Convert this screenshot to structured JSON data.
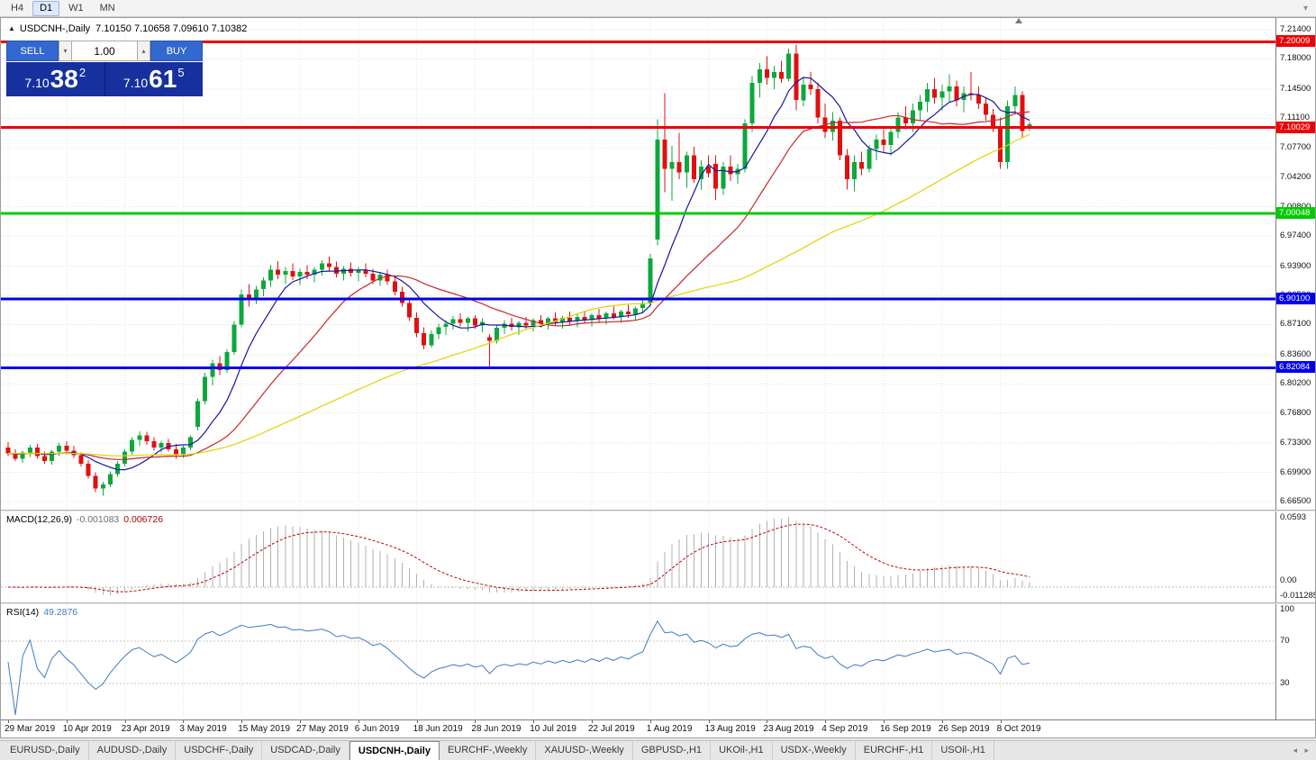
{
  "toolbar": {
    "timeframes": [
      {
        "label": "H4",
        "active": false
      },
      {
        "label": "D1",
        "active": true
      },
      {
        "label": "W1",
        "active": false
      },
      {
        "label": "MN",
        "active": false
      }
    ]
  },
  "glyphs": {
    "collapse": "▲",
    "overflow": "▾",
    "spin_up": "▴",
    "spin_down": "▾",
    "tab_left": "◂",
    "tab_right": "▸"
  },
  "chart": {
    "title": "USDCNH-,Daily",
    "ohlc": "7.10150 7.10658 7.09610 7.10382"
  },
  "one_click": {
    "sell_label": "SELL",
    "buy_label": "BUY",
    "volume": "1.00",
    "sell_price": {
      "prefix": "7.10",
      "big": "38",
      "sup": "2"
    },
    "buy_price": {
      "prefix": "7.10",
      "big": "61",
      "sup": "5"
    }
  },
  "price_axis": {
    "ticks": [
      "7.21400",
      "7.18000",
      "7.14500",
      "7.11100",
      "7.07700",
      "7.04200",
      "7.00800",
      "6.97400",
      "6.93900",
      "6.90500",
      "6.87100",
      "6.83600",
      "6.80200",
      "6.76800",
      "6.73300",
      "6.69900",
      "6.66500"
    ]
  },
  "hlines": [
    {
      "price": 7.20009,
      "label": "7.20009",
      "color": "#ee0202",
      "width": 3
    },
    {
      "price": 7.10029,
      "label": "7.10029",
      "color": "#ee0202",
      "width": 3
    },
    {
      "price": 7.00048,
      "label": "7.00048",
      "color": "#00cc00",
      "width": 3
    },
    {
      "price": 6.901,
      "label": "6.90100",
      "color": "#0000ee",
      "width": 3
    },
    {
      "price": 6.82084,
      "label": "6.82084",
      "color": "#0000ee",
      "width": 3
    }
  ],
  "colors": {
    "up": "#0ca83c",
    "down": "#e01010",
    "grid": "#e3e3e3",
    "macd_hist": "#b2b2b2",
    "macd_signal": "#c00000",
    "rsi": "#3e7cbf"
  },
  "chart_data": {
    "type": "candlestick",
    "symbol": "USDCNH",
    "timeframe": "Daily",
    "ylim": [
      6.6556,
      7.2276
    ],
    "grid": true,
    "bars": [
      [
        6.728,
        6.734,
        6.718,
        6.721
      ],
      [
        6.721,
        6.726,
        6.712,
        6.715
      ],
      [
        6.715,
        6.724,
        6.71,
        6.722
      ],
      [
        6.722,
        6.731,
        6.717,
        6.728
      ],
      [
        6.728,
        6.732,
        6.715,
        6.718
      ],
      [
        6.718,
        6.723,
        6.709,
        6.712
      ],
      [
        6.712,
        6.725,
        6.708,
        6.723
      ],
      [
        6.723,
        6.733,
        6.718,
        6.73
      ],
      [
        6.73,
        6.735,
        6.72,
        6.724
      ],
      [
        6.724,
        6.73,
        6.716,
        6.719
      ],
      [
        6.719,
        6.722,
        6.706,
        6.709
      ],
      [
        6.709,
        6.713,
        6.692,
        6.695
      ],
      [
        6.695,
        6.699,
        6.676,
        6.68
      ],
      [
        6.68,
        6.688,
        6.672,
        6.685
      ],
      [
        6.685,
        6.7,
        6.682,
        6.697
      ],
      [
        6.697,
        6.712,
        6.694,
        6.709
      ],
      [
        6.709,
        6.726,
        6.706,
        6.723
      ],
      [
        6.723,
        6.74,
        6.72,
        6.737
      ],
      [
        6.737,
        6.747,
        6.73,
        6.742
      ],
      [
        6.742,
        6.746,
        6.731,
        6.735
      ],
      [
        6.735,
        6.74,
        6.724,
        6.728
      ],
      [
        6.728,
        6.736,
        6.722,
        6.733
      ],
      [
        6.733,
        6.738,
        6.723,
        6.726
      ],
      [
        6.726,
        6.732,
        6.715,
        6.719
      ],
      [
        6.719,
        6.73,
        6.716,
        6.728
      ],
      [
        6.728,
        6.742,
        6.725,
        6.74
      ],
      [
        6.752,
        6.785,
        6.748,
        6.782
      ],
      [
        6.782,
        6.815,
        6.778,
        6.81
      ],
      [
        6.81,
        6.83,
        6.8,
        6.826
      ],
      [
        6.826,
        6.834,
        6.812,
        6.818
      ],
      [
        6.818,
        6.842,
        6.815,
        6.839
      ],
      [
        6.839,
        6.875,
        6.836,
        6.871
      ],
      [
        6.871,
        6.912,
        6.868,
        6.906
      ],
      [
        6.906,
        6.918,
        6.892,
        6.901
      ],
      [
        6.901,
        6.916,
        6.895,
        6.912
      ],
      [
        6.912,
        6.926,
        6.904,
        6.922
      ],
      [
        6.922,
        6.94,
        6.915,
        6.935
      ],
      [
        6.935,
        6.945,
        6.924,
        6.929
      ],
      [
        6.929,
        6.938,
        6.918,
        6.933
      ],
      [
        6.933,
        6.942,
        6.923,
        6.927
      ],
      [
        6.927,
        6.936,
        6.917,
        6.932
      ],
      [
        6.932,
        6.94,
        6.924,
        6.929
      ],
      [
        6.929,
        6.938,
        6.92,
        6.935
      ],
      [
        6.935,
        6.946,
        6.928,
        6.942
      ],
      [
        6.942,
        6.95,
        6.933,
        6.938
      ],
      [
        6.938,
        6.944,
        6.926,
        6.93
      ],
      [
        6.93,
        6.939,
        6.922,
        6.936
      ],
      [
        6.936,
        6.943,
        6.927,
        6.931
      ],
      [
        6.931,
        6.938,
        6.921,
        6.935
      ],
      [
        6.935,
        6.942,
        6.926,
        6.93
      ],
      [
        6.93,
        6.936,
        6.918,
        6.922
      ],
      [
        6.922,
        6.932,
        6.916,
        6.929
      ],
      [
        6.929,
        6.935,
        6.917,
        6.921
      ],
      [
        6.921,
        6.926,
        6.905,
        6.909
      ],
      [
        6.909,
        6.915,
        6.892,
        6.896
      ],
      [
        6.896,
        6.901,
        6.875,
        6.879
      ],
      [
        6.879,
        6.885,
        6.856,
        6.861
      ],
      [
        6.861,
        6.868,
        6.842,
        6.847
      ],
      [
        6.847,
        6.864,
        6.844,
        6.86
      ],
      [
        6.86,
        6.872,
        6.854,
        6.868
      ],
      [
        6.868,
        6.876,
        6.859,
        6.872
      ],
      [
        6.872,
        6.881,
        6.865,
        6.877
      ],
      [
        6.877,
        6.884,
        6.869,
        6.873
      ],
      [
        6.873,
        6.88,
        6.863,
        6.878
      ],
      [
        6.878,
        6.882,
        6.866,
        6.87
      ],
      [
        6.87,
        6.878,
        6.862,
        6.874
      ],
      [
        6.856,
        6.86,
        6.821,
        6.852
      ],
      [
        6.852,
        6.87,
        6.849,
        6.867
      ],
      [
        6.867,
        6.876,
        6.86,
        6.872
      ],
      [
        6.872,
        6.879,
        6.864,
        6.868
      ],
      [
        6.868,
        6.875,
        6.859,
        6.873
      ],
      [
        6.873,
        6.88,
        6.866,
        6.87
      ],
      [
        6.87,
        6.878,
        6.863,
        6.876
      ],
      [
        6.876,
        6.882,
        6.868,
        6.872
      ],
      [
        6.872,
        6.88,
        6.865,
        6.878
      ],
      [
        6.878,
        6.885,
        6.87,
        6.874
      ],
      [
        6.874,
        6.881,
        6.866,
        6.879
      ],
      [
        6.879,
        6.886,
        6.871,
        6.875
      ],
      [
        6.875,
        6.883,
        6.868,
        6.88
      ],
      [
        6.88,
        6.887,
        6.872,
        6.876
      ],
      [
        6.876,
        6.884,
        6.869,
        6.882
      ],
      [
        6.882,
        6.889,
        6.874,
        6.878
      ],
      [
        6.878,
        6.886,
        6.871,
        6.884
      ],
      [
        6.884,
        6.892,
        6.877,
        6.88
      ],
      [
        6.88,
        6.888,
        6.873,
        6.886
      ],
      [
        6.886,
        6.894,
        6.879,
        6.883
      ],
      [
        6.883,
        6.892,
        6.876,
        6.89
      ],
      [
        6.89,
        6.899,
        6.884,
        6.896
      ],
      [
        6.896,
        6.953,
        6.892,
        6.948
      ],
      [
        6.97,
        7.11,
        6.963,
        7.086
      ],
      [
        7.086,
        7.14,
        7.025,
        7.052
      ],
      [
        7.052,
        7.079,
        7.015,
        7.06
      ],
      [
        7.06,
        7.094,
        7.04,
        7.048
      ],
      [
        7.048,
        7.072,
        7.03,
        7.068
      ],
      [
        7.068,
        7.078,
        7.036,
        7.04
      ],
      [
        7.04,
        7.062,
        7.028,
        7.055
      ],
      [
        7.055,
        7.068,
        7.042,
        7.047
      ],
      [
        7.058,
        7.068,
        7.016,
        7.029
      ],
      [
        7.029,
        7.06,
        7.022,
        7.055
      ],
      [
        7.055,
        7.068,
        7.038,
        7.046
      ],
      [
        7.046,
        7.058,
        7.035,
        7.052
      ],
      [
        7.052,
        7.11,
        7.048,
        7.105
      ],
      [
        7.105,
        7.16,
        7.095,
        7.152
      ],
      [
        7.152,
        7.175,
        7.135,
        7.168
      ],
      [
        7.168,
        7.183,
        7.15,
        7.158
      ],
      [
        7.158,
        7.172,
        7.145,
        7.165
      ],
      [
        7.165,
        7.178,
        7.152,
        7.157
      ],
      [
        7.157,
        7.192,
        7.154,
        7.186
      ],
      [
        7.186,
        7.1965,
        7.12,
        7.132
      ],
      [
        7.132,
        7.158,
        7.125,
        7.15
      ],
      [
        7.15,
        7.165,
        7.138,
        7.145
      ],
      [
        7.145,
        7.152,
        7.105,
        7.112
      ],
      [
        7.112,
        7.128,
        7.088,
        7.095
      ],
      [
        7.095,
        7.118,
        7.085,
        7.108
      ],
      [
        7.108,
        7.112,
        7.062,
        7.068
      ],
      [
        7.068,
        7.075,
        7.028,
        7.04
      ],
      [
        7.04,
        7.068,
        7.026,
        7.06
      ],
      [
        7.06,
        7.072,
        7.045,
        7.052
      ],
      [
        7.052,
        7.08,
        7.048,
        7.075
      ],
      [
        7.075,
        7.092,
        7.062,
        7.086
      ],
      [
        7.086,
        7.098,
        7.072,
        7.08
      ],
      [
        7.08,
        7.102,
        7.068,
        7.095
      ],
      [
        7.095,
        7.118,
        7.088,
        7.112
      ],
      [
        7.112,
        7.125,
        7.098,
        7.105
      ],
      [
        7.105,
        7.128,
        7.095,
        7.12
      ],
      [
        7.12,
        7.138,
        7.108,
        7.13
      ],
      [
        7.13,
        7.152,
        7.118,
        7.145
      ],
      [
        7.145,
        7.158,
        7.128,
        7.135
      ],
      [
        7.135,
        7.15,
        7.12,
        7.142
      ],
      [
        7.142,
        7.162,
        7.13,
        7.148
      ],
      [
        7.148,
        7.155,
        7.125,
        7.132
      ],
      [
        7.132,
        7.148,
        7.118,
        7.14
      ],
      [
        7.14,
        7.165,
        7.132,
        7.138
      ],
      [
        7.138,
        7.148,
        7.122,
        7.128
      ],
      [
        7.128,
        7.135,
        7.108,
        7.115
      ],
      [
        7.115,
        7.122,
        7.095,
        7.102
      ],
      [
        7.102,
        7.112,
        7.052,
        7.06
      ],
      [
        7.06,
        7.132,
        7.052,
        7.125
      ],
      [
        7.125,
        7.148,
        7.115,
        7.138
      ],
      [
        7.138,
        7.142,
        7.088,
        7.096
      ],
      [
        7.1015,
        7.10658,
        7.0961,
        7.10382
      ]
    ],
    "x_labels": [
      {
        "label": "29 Mar 2019",
        "bar": 0
      },
      {
        "label": "10 Apr 2019",
        "bar": 8
      },
      {
        "label": "23 Apr 2019",
        "bar": 16
      },
      {
        "label": "3 May 2019",
        "bar": 24
      },
      {
        "label": "15 May 2019",
        "bar": 32
      },
      {
        "label": "27 May 2019",
        "bar": 40
      },
      {
        "label": "6 Jun 2019",
        "bar": 48
      },
      {
        "label": "18 Jun 2019",
        "bar": 56
      },
      {
        "label": "28 Jun 2019",
        "bar": 64
      },
      {
        "label": "10 Jul 2019",
        "bar": 72
      },
      {
        "label": "22 Jul 2019",
        "bar": 80
      },
      {
        "label": "1 Aug 2019",
        "bar": 88
      },
      {
        "label": "13 Aug 2019",
        "bar": 96
      },
      {
        "label": "23 Aug 2019",
        "bar": 104
      },
      {
        "label": "4 Sep 2019",
        "bar": 112
      },
      {
        "label": "16 Sep 2019",
        "bar": 120
      },
      {
        "label": "26 Sep 2019",
        "bar": 128
      },
      {
        "label": "8 Oct 2019",
        "bar": 136
      }
    ],
    "moving_averages": [
      {
        "period": 8,
        "color": "#16169c"
      },
      {
        "period": 21,
        "color": "#c62828"
      },
      {
        "period": 55,
        "color": "#e3d200"
      }
    ],
    "indicators": {
      "macd": {
        "label": "MACD(12,26,9)",
        "fast": 12,
        "slow": 26,
        "signal": 9,
        "value_main": "-0.001083",
        "value_signal": "0.006726",
        "axis_max": "0.0593",
        "axis_zero": "0.00",
        "axis_min": "-0.011285"
      },
      "rsi": {
        "label": "RSI(14)",
        "period": 14,
        "value": "49.2876",
        "levels": [
          70,
          30
        ],
        "axis": [
          "100",
          "70",
          "30"
        ]
      }
    }
  },
  "tabs": [
    {
      "label": "EURUSD-,Daily",
      "active": false
    },
    {
      "label": "AUDUSD-,Daily",
      "active": false
    },
    {
      "label": "USDCHF-,Daily",
      "active": false
    },
    {
      "label": "USDCAD-,Daily",
      "active": false
    },
    {
      "label": "USDCNH-,Daily",
      "active": true
    },
    {
      "label": "EURCHF-,Weekly",
      "active": false
    },
    {
      "label": "XAUUSD-,Weekly",
      "active": false
    },
    {
      "label": "GBPUSD-,H1",
      "active": false
    },
    {
      "label": "UKOil-,H1",
      "active": false
    },
    {
      "label": "USDX-,Weekly",
      "active": false
    },
    {
      "label": "EURCHF-,H1",
      "active": false
    },
    {
      "label": "USOil-,H1",
      "active": false
    }
  ]
}
